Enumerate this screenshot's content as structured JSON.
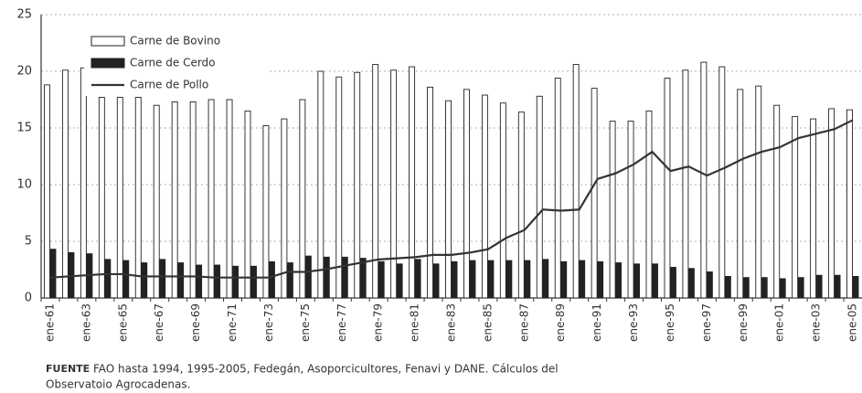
{
  "chart_data": {
    "type": "bar",
    "categories": [
      "ene-61",
      null,
      "ene-63",
      null,
      "ene-65",
      null,
      "ene-67",
      null,
      "ene-69",
      null,
      "ene-71",
      null,
      "ene-73",
      null,
      "ene-75",
      null,
      "ene-77",
      null,
      "ene-79",
      null,
      "ene-81",
      null,
      "ene-83",
      null,
      "ene-85",
      null,
      "ene-87",
      null,
      "ene-89",
      null,
      "ene-91",
      null,
      "ene-93",
      null,
      "ene-95",
      null,
      "ene-97",
      null,
      "ene-99",
      null,
      "ene-01",
      null,
      "ene-03",
      null,
      "ene-05"
    ],
    "series": [
      {
        "name": "Carne de Bovino",
        "color": "#ffffff",
        "values": [
          18.8,
          20.1,
          20.3,
          17.7,
          17.7,
          17.7,
          17.0,
          17.3,
          17.3,
          17.5,
          17.5,
          16.5,
          15.2,
          15.8,
          17.5,
          20.0,
          19.5,
          19.9,
          20.6,
          20.1,
          20.4,
          18.6,
          17.4,
          18.4,
          17.9,
          17.2,
          16.4,
          17.8,
          19.4,
          20.6,
          18.5,
          15.6,
          15.6,
          16.5,
          19.4,
          20.1,
          20.8,
          20.4,
          18.4,
          18.7,
          17.0,
          16.0,
          15.8,
          16.7,
          16.6
        ]
      },
      {
        "name": "Carne de Cerdo",
        "color": "#222222",
        "values": [
          4.3,
          4.0,
          3.9,
          3.4,
          3.3,
          3.1,
          3.4,
          3.1,
          2.9,
          2.9,
          2.8,
          2.8,
          3.2,
          3.1,
          3.7,
          3.6,
          3.6,
          3.5,
          3.2,
          3.0,
          3.4,
          3.0,
          3.2,
          3.3,
          3.3,
          3.3,
          3.3,
          3.4,
          3.2,
          3.3,
          3.2,
          3.1,
          3.0,
          3.0,
          2.7,
          2.6,
          2.3,
          1.9,
          1.8,
          1.8,
          1.7,
          1.8,
          2.0,
          2.0,
          1.9
        ]
      },
      {
        "name": "Carne de Pollo",
        "color": "#333333",
        "type": "line",
        "values": [
          1.8,
          1.9,
          2.0,
          2.1,
          2.1,
          1.9,
          1.9,
          1.9,
          1.9,
          1.8,
          1.8,
          1.8,
          1.8,
          2.3,
          2.3,
          2.5,
          2.8,
          3.1,
          3.4,
          3.5,
          3.6,
          3.8,
          3.8,
          4.0,
          4.3,
          5.3,
          6.0,
          7.8,
          7.7,
          7.8,
          10.5,
          11.0,
          11.8,
          12.9,
          11.2,
          11.6,
          10.8,
          11.5,
          12.3,
          12.9,
          13.3,
          14.1,
          14.5,
          14.9,
          15.7
        ]
      }
    ],
    "ylim": [
      0,
      25
    ],
    "yticks": [
      0,
      5,
      10,
      15,
      20,
      25
    ],
    "grid": true,
    "legend": "upper left",
    "source_label": "FUENTE",
    "source_text": "FAO hasta 1994, 1995-2005, Fedegán, Asoporcicultores, Fenavi y DANE. Cálculos del",
    "source_text_2": "Observatoio Agrocadenas."
  }
}
